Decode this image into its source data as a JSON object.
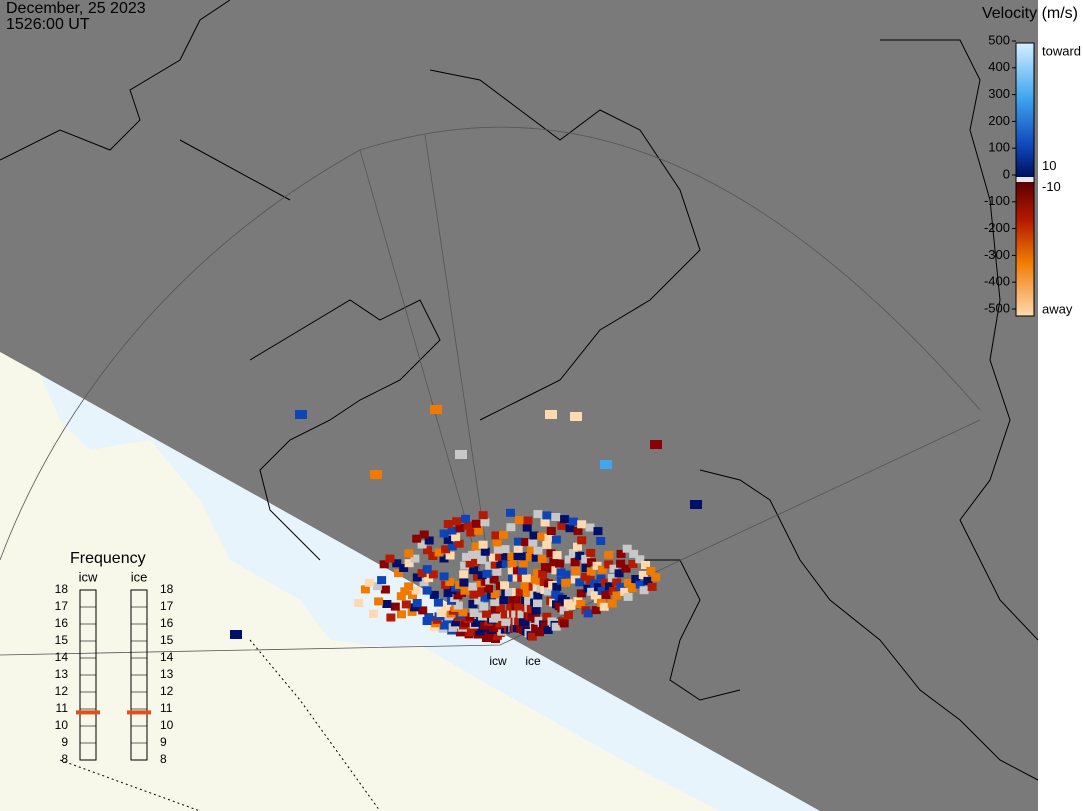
{
  "header": {
    "date": "December, 25 2023",
    "time": "1526:00 UT"
  },
  "velocity_scale": {
    "title": "Velocity (m/s)",
    "ticks": [
      500,
      400,
      300,
      200,
      100,
      0,
      -100,
      -200,
      -300,
      -400,
      -500
    ],
    "thresholds": [
      10,
      -10
    ],
    "toward_label": "toward",
    "away_label": "away"
  },
  "frequency": {
    "title": "Frequency",
    "ticks": [
      8,
      9,
      10,
      11,
      12,
      13,
      14,
      15,
      16,
      17,
      18
    ],
    "radars": [
      {
        "name": "icw",
        "value": 10.8
      },
      {
        "name": "ice",
        "value": 10.8
      }
    ]
  },
  "sites": [
    "icw",
    "ice"
  ]
}
